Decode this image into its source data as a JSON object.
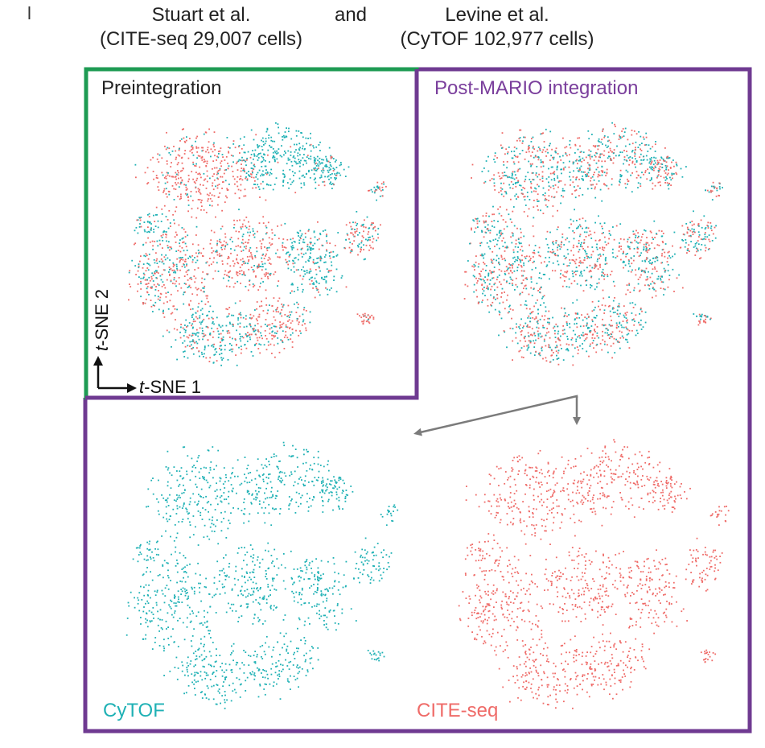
{
  "panel_letter": "l",
  "header": {
    "dataset_left": "Stuart et al.",
    "dataset_left_detail": "(CITE-seq 29,007 cells)",
    "conjunction": "and",
    "dataset_right": "Levine et al.",
    "dataset_right_detail": "(CyTOF 102,977 cells)"
  },
  "panels": {
    "preintegration_title": "Preintegration",
    "post_title": "Post-MARIO integration",
    "cytof_label": "CyTOF",
    "citeseq_label": "CITE-seq"
  },
  "axes": {
    "x_italic": "t",
    "x_rest": "-SNE 1",
    "y_italic": "t",
    "y_rest": "-SNE 2"
  },
  "colors": {
    "cytof": "#1fb1b5",
    "citeseq": "#ef6b68",
    "frame_pre": "#1e9b53",
    "frame_post": "#6f3a91",
    "title_post": "#7a3e9c",
    "arrow": "#7b7b7b",
    "axis": "#111111"
  },
  "modalities": [
    "CyTOF",
    "CITE-seq"
  ]
}
